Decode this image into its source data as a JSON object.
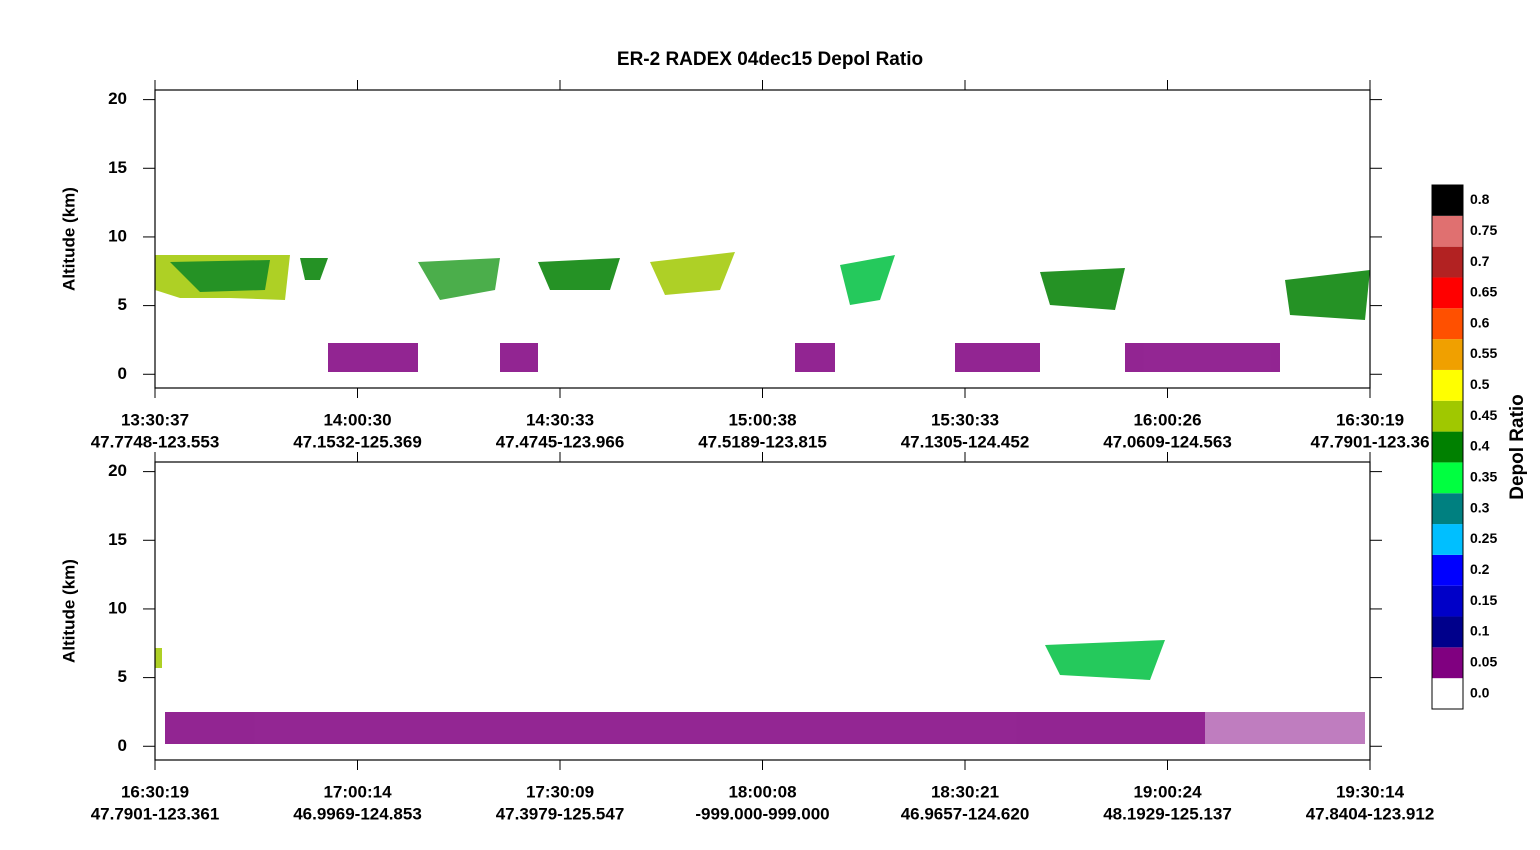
{
  "chart_data": [
    {
      "type": "curtain",
      "title": "ER-2 RADEX 04dec15 Depol Ratio",
      "ylabel": "Altitude (km)",
      "ylim": [
        -1,
        20.7
      ],
      "yticks": [
        0,
        5,
        10,
        15,
        20
      ],
      "xtick_labels": [
        [
          "13:30:37",
          "47.7748-123.553"
        ],
        [
          "14:00:30",
          "47.1532-125.369"
        ],
        [
          "14:30:33",
          "47.4745-123.966"
        ],
        [
          "15:00:38",
          "47.5189-123.815"
        ],
        [
          "15:30:33",
          "47.1305-124.452"
        ],
        [
          "16:00:26",
          "47.0609-124.563"
        ],
        [
          "16:30:19",
          "47.7901-123.36"
        ]
      ]
    },
    {
      "type": "curtain",
      "ylabel": "Altitude (km)",
      "ylim": [
        -1,
        20.7
      ],
      "yticks": [
        0,
        5,
        10,
        15,
        20
      ],
      "xtick_labels": [
        [
          "16:30:19",
          "47.7901-123.361"
        ],
        [
          "17:00:14",
          "46.9969-124.853"
        ],
        [
          "17:30:09",
          "47.3979-125.547"
        ],
        [
          "18:00:08",
          "-999.000-999.000"
        ],
        [
          "18:30:21",
          "46.9657-124.620"
        ],
        [
          "19:00:24",
          "48.1929-125.137"
        ],
        [
          "19:30:14",
          "47.8404-123.912"
        ]
      ]
    },
    {
      "type": "colorbar",
      "label": "Depol Ratio",
      "ticks": [
        {
          "value": 0,
          "label": "0.0"
        },
        0.05,
        {
          "value": 0.1,
          "label": "0.1"
        },
        0.15,
        {
          "value": 0.2,
          "label": "0.2"
        },
        0.25,
        {
          "value": 0.3,
          "label": "0.3"
        },
        0.35,
        {
          "value": 0.4,
          "label": "0.4"
        },
        0.45,
        {
          "value": 0.5,
          "label": "0.5"
        },
        0.55,
        {
          "value": 0.6,
          "label": "0.6"
        },
        0.65,
        {
          "value": 0.7,
          "label": "0.7"
        },
        0.75,
        {
          "value": 0.8,
          "label": "0.8"
        }
      ],
      "colors": [
        "#ffffff",
        "#800080",
        "#00008b",
        "#0000c8",
        "#0000ff",
        "#00bfff",
        "#008080",
        "#00ff40",
        "#008000",
        "#a0c800",
        "#ffff00",
        "#f0a000",
        "#ff5000",
        "#ff0000",
        "#b22222",
        "#e07070",
        "#000000"
      ]
    }
  ]
}
